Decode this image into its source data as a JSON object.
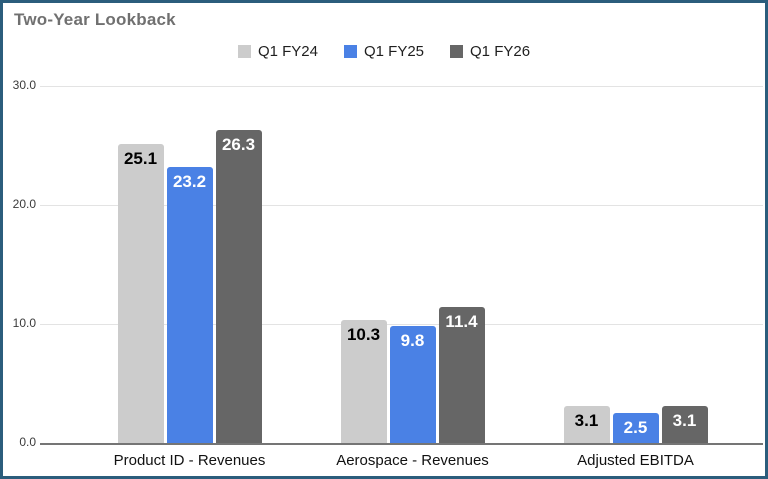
{
  "frame": {
    "border_color": "#2b5d7c",
    "background": "#ffffff"
  },
  "chart_data": {
    "type": "bar",
    "title": "Two-Year Lookback",
    "categories": [
      "Product ID - Revenues",
      "Aerospace - Revenues",
      "Adjusted EBITDA"
    ],
    "series": [
      {
        "name": "Q1 FY24",
        "color": "#cccccc",
        "label_color": "#000000",
        "values": [
          25.1,
          10.3,
          3.1
        ]
      },
      {
        "name": "Q1 FY25",
        "color": "#4a81e5",
        "label_color": "#ffffff",
        "values": [
          23.2,
          9.8,
          2.5
        ]
      },
      {
        "name": "Q1 FY26",
        "color": "#666666",
        "label_color": "#ffffff",
        "values": [
          26.3,
          11.4,
          3.1
        ]
      }
    ],
    "y_axis": {
      "min": 0,
      "max": 30,
      "tick_labels": [
        "0.0",
        "10.0",
        "20.0",
        "30.0"
      ]
    },
    "legend_position": "top",
    "grid": true,
    "styles": {
      "title_color": "#707070",
      "legend_text_color": "#1f1f1f",
      "tick_text_color": "#3b3b3b",
      "category_text_color": "#111111",
      "gridline_color": "#e3e3e3",
      "axis_line_color": "#757575"
    }
  }
}
